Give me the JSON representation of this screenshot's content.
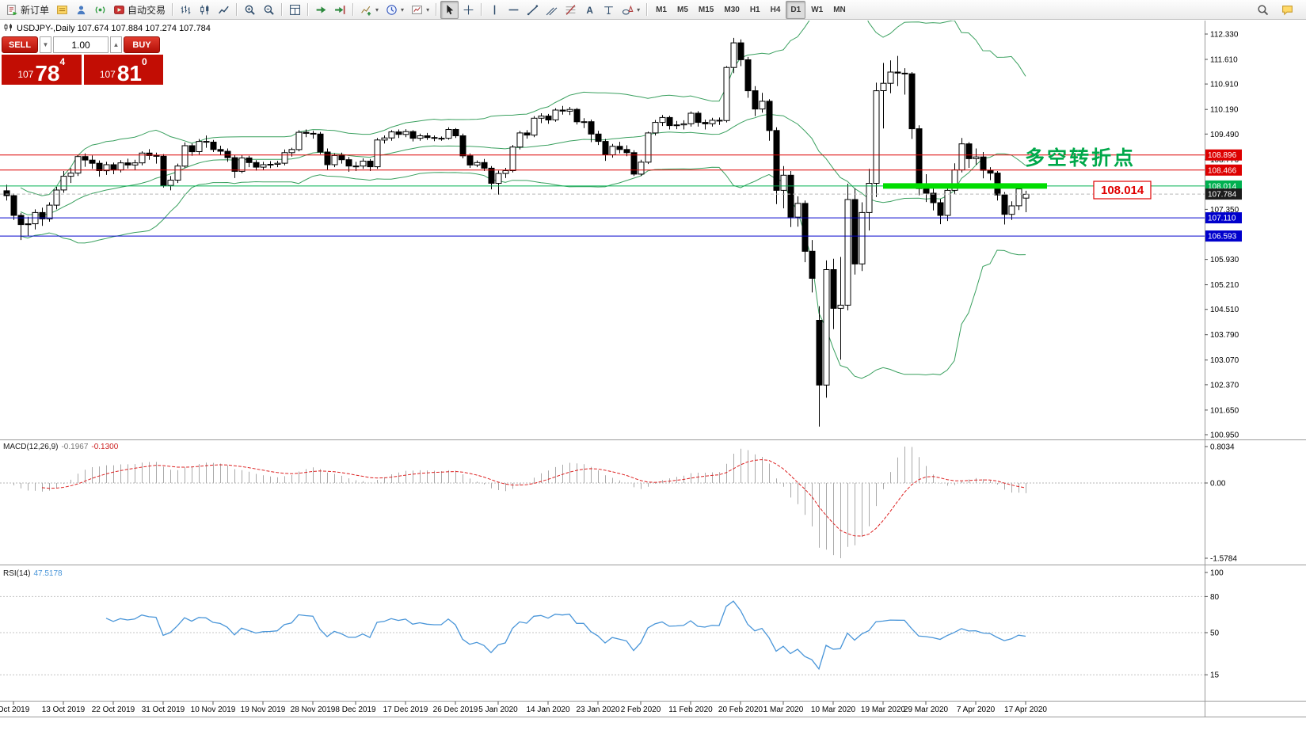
{
  "chart_header": {
    "text": "USDJPY-,Daily 107.674 107.884 107.274 107.784"
  },
  "trade_panel": {
    "sell_label": "SELL",
    "buy_label": "BUY",
    "volume": "1.00",
    "sell_price": {
      "prefix": "107",
      "big": "78",
      "sup": "4"
    },
    "buy_price": {
      "prefix": "107",
      "big": "81",
      "sup": "0"
    }
  },
  "annotations": {
    "turning_point": "多空转折点",
    "level_label": "108.014"
  },
  "toolbar": {
    "items": [
      {
        "type": "button",
        "name": "new-order-button",
        "icon": "new-order-icon",
        "label": "新订单"
      },
      {
        "type": "button",
        "name": "market-watch-button",
        "icon": "market-watch-icon"
      },
      {
        "type": "button",
        "name": "navigator-button",
        "icon": "navigator-icon"
      },
      {
        "type": "button",
        "name": "mql5-community-button",
        "icon": "mql5-community-icon"
      },
      {
        "type": "button",
        "name": "autotrading-button",
        "icon": "autotrading-icon",
        "label": "自动交易"
      },
      {
        "type": "separator"
      },
      {
        "type": "button",
        "name": "bar-chart-button",
        "icon": "bar-chart-icon"
      },
      {
        "type": "button",
        "name": "candlestick-chart-button",
        "icon": "candlestick-icon"
      },
      {
        "type": "button",
        "name": "line-chart-button",
        "icon": "line-chart-icon"
      },
      {
        "type": "separator"
      },
      {
        "type": "button",
        "name": "zoom-in-button",
        "icon": "zoom-in-icon"
      },
      {
        "type": "button",
        "name": "zoom-out-button",
        "icon": "zoom-out-icon"
      },
      {
        "type": "separator"
      },
      {
        "type": "button",
        "name": "tile-windows-button",
        "icon": "tile-windows-icon"
      },
      {
        "type": "separator"
      },
      {
        "type": "button",
        "name": "auto-scroll-button",
        "icon": "auto-scroll-icon"
      },
      {
        "type": "button",
        "name": "chart-shift-button",
        "icon": "chart-shift-icon"
      },
      {
        "type": "separator"
      },
      {
        "type": "button",
        "name": "indicators-button",
        "icon": "indicators-icon",
        "caret": true
      },
      {
        "type": "button",
        "name": "periods-button",
        "icon": "period-icon",
        "caret": true
      },
      {
        "type": "button",
        "name": "templates-button",
        "icon": "template-icon",
        "caret": true
      },
      {
        "type": "separator"
      },
      {
        "type": "button",
        "name": "cursor-button",
        "icon": "cursor-icon",
        "active": true
      },
      {
        "type": "button",
        "name": "crosshair-button",
        "icon": "crosshair-icon"
      },
      {
        "type": "separator"
      },
      {
        "type": "button",
        "name": "vertical-line-button",
        "icon": "vertical-line-icon"
      },
      {
        "type": "button",
        "name": "horizontal-line-button",
        "icon": "horizontal-line-icon"
      },
      {
        "type": "button",
        "name": "trendline-button",
        "icon": "trendline-icon"
      },
      {
        "type": "button",
        "name": "channel-button",
        "icon": "channel-icon"
      },
      {
        "type": "button",
        "name": "fibonacci-button",
        "icon": "fibonacci-icon"
      },
      {
        "type": "button",
        "name": "text-button",
        "icon": "text-icon"
      },
      {
        "type": "button",
        "name": "label-button",
        "icon": "label-icon"
      },
      {
        "type": "button",
        "name": "shapes-button",
        "icon": "shapes-icon",
        "caret": true
      },
      {
        "type": "separator"
      }
    ],
    "timeframes": [
      {
        "label": "M1"
      },
      {
        "label": "M5"
      },
      {
        "label": "M15"
      },
      {
        "label": "M30"
      },
      {
        "label": "H1"
      },
      {
        "label": "H4"
      },
      {
        "label": "D1",
        "active": true
      },
      {
        "label": "W1"
      },
      {
        "label": "MN"
      }
    ],
    "right_items": [
      {
        "name": "search-button",
        "icon": "search-icon"
      },
      {
        "name": "chat-button",
        "icon": "chat-icon"
      }
    ]
  },
  "chart_data": {
    "type": "candlestick",
    "symbol": "USDJPY-",
    "timeframe": "Daily",
    "ohlc_last": {
      "o": 107.674,
      "h": 107.884,
      "l": 107.274,
      "c": 107.784
    },
    "price_anchor": {
      "top_price": 112.33,
      "bottom_price": 100.95
    },
    "y_axis_ticks": [
      "112.330",
      "111.610",
      "110.910",
      "110.190",
      "109.490",
      "108.770",
      "107.350",
      "105.930",
      "105.210",
      "104.510",
      "103.790",
      "103.070",
      "102.370",
      "101.650",
      "100.950"
    ],
    "hlines": [
      {
        "price": 108.896,
        "color": "#dd0000",
        "label": "108.896"
      },
      {
        "price": 108.466,
        "color": "#dd0000",
        "label": "108.466"
      },
      {
        "price": 108.014,
        "color": "#00b050",
        "label": "108.014"
      },
      {
        "price": 107.11,
        "color": "#0000cc",
        "label": "107.110"
      },
      {
        "price": 106.593,
        "color": "#0000cc",
        "label": "106.593"
      }
    ],
    "current_price": {
      "value": 107.784,
      "label": "107.784",
      "tag_color": "#1c1c1c"
    },
    "green_segment": {
      "price": 108.014,
      "x1_index": 123,
      "x2_index": 146,
      "color": "#00dd00",
      "thickness": 7
    },
    "bollinger": {
      "period": 20,
      "deviation": 2,
      "color": "#3aa05f"
    },
    "macd": {
      "label": "MACD(12,26,9)",
      "value_main": "-0.1967",
      "value_signal": "-0.1300",
      "axis_labels": [
        "0.8034",
        "0.00",
        "-1.5784"
      ],
      "histogram_color": "#a9a9a9",
      "signal_color": "#dd2222"
    },
    "rsi": {
      "label": "RSI(14)",
      "value": "47.5178",
      "axis_labels": [
        "100",
        "80",
        "50",
        "15"
      ],
      "levels": [
        80,
        50,
        15
      ],
      "line_color": "#4a96d9"
    },
    "x_labels": [
      {
        "i": 1,
        "t": "Oct 2019"
      },
      {
        "i": 8,
        "t": "13 Oct 2019"
      },
      {
        "i": 15,
        "t": "22 Oct 2019"
      },
      {
        "i": 22,
        "t": "31 Oct 2019"
      },
      {
        "i": 29,
        "t": "10 Nov 2019"
      },
      {
        "i": 36,
        "t": "19 Nov 2019"
      },
      {
        "i": 43,
        "t": "28 Nov 2019"
      },
      {
        "i": 49,
        "t": "8 Dec 2019"
      },
      {
        "i": 56,
        "t": "17 Dec 2019"
      },
      {
        "i": 63,
        "t": "26 Dec 2019"
      },
      {
        "i": 69,
        "t": "5 Jan 2020"
      },
      {
        "i": 76,
        "t": "14 Jan 2020"
      },
      {
        "i": 83,
        "t": "23 Jan 2020"
      },
      {
        "i": 89,
        "t": "2 Feb 2020"
      },
      {
        "i": 96,
        "t": "11 Feb 2020"
      },
      {
        "i": 103,
        "t": "20 Feb 2020"
      },
      {
        "i": 109,
        "t": "1 Mar 2020"
      },
      {
        "i": 116,
        "t": "10 Mar 2020"
      },
      {
        "i": 123,
        "t": "19 Mar 2020"
      },
      {
        "i": 129,
        "t": "29 Mar 2020"
      },
      {
        "i": 136,
        "t": "7 Apr 2020"
      },
      {
        "i": 143,
        "t": "17 Apr 2020"
      }
    ],
    "candles": [
      [
        107.88,
        108.05,
        107.6,
        107.74
      ],
      [
        107.74,
        107.8,
        107.05,
        107.18
      ],
      [
        107.18,
        107.25,
        106.48,
        106.92
      ],
      [
        106.92,
        107.14,
        106.6,
        106.94
      ],
      [
        106.94,
        107.35,
        106.78,
        107.26
      ],
      [
        107.26,
        107.4,
        106.88,
        107.08
      ],
      [
        107.08,
        107.55,
        107.0,
        107.47
      ],
      [
        107.47,
        107.99,
        107.35,
        107.9
      ],
      [
        107.9,
        108.44,
        107.82,
        108.29
      ],
      [
        108.29,
        108.52,
        108.1,
        108.38
      ],
      [
        108.38,
        108.9,
        108.3,
        108.85
      ],
      [
        108.85,
        108.94,
        108.56,
        108.75
      ],
      [
        108.75,
        108.88,
        108.5,
        108.66
      ],
      [
        108.66,
        108.74,
        108.28,
        108.45
      ],
      [
        108.45,
        108.7,
        108.33,
        108.62
      ],
      [
        108.62,
        108.68,
        108.35,
        108.47
      ],
      [
        108.47,
        108.75,
        108.4,
        108.67
      ],
      [
        108.67,
        108.79,
        108.51,
        108.61
      ],
      [
        108.61,
        108.76,
        108.47,
        108.67
      ],
      [
        108.67,
        109.0,
        108.6,
        108.95
      ],
      [
        108.95,
        109.06,
        108.76,
        108.88
      ],
      [
        108.88,
        108.96,
        108.65,
        108.86
      ],
      [
        108.86,
        108.92,
        107.97,
        108.03
      ],
      [
        108.03,
        108.3,
        107.89,
        108.18
      ],
      [
        108.18,
        108.65,
        108.1,
        108.58
      ],
      [
        108.58,
        109.25,
        108.52,
        109.16
      ],
      [
        109.16,
        109.22,
        108.87,
        108.99
      ],
      [
        108.99,
        109.35,
        108.91,
        109.28
      ],
      [
        109.28,
        109.45,
        109.1,
        109.26
      ],
      [
        109.26,
        109.32,
        108.98,
        109.05
      ],
      [
        109.05,
        109.16,
        108.9,
        109.0
      ],
      [
        109.0,
        109.08,
        108.7,
        108.82
      ],
      [
        108.82,
        108.9,
        108.24,
        108.43
      ],
      [
        108.43,
        108.89,
        108.38,
        108.81
      ],
      [
        108.81,
        108.87,
        108.55,
        108.68
      ],
      [
        108.68,
        108.75,
        108.45,
        108.55
      ],
      [
        108.55,
        108.7,
        108.47,
        108.62
      ],
      [
        108.62,
        108.72,
        108.52,
        108.63
      ],
      [
        108.63,
        108.73,
        108.55,
        108.66
      ],
      [
        108.66,
        109.05,
        108.6,
        108.96
      ],
      [
        108.96,
        109.1,
        108.85,
        109.05
      ],
      [
        109.05,
        109.6,
        109.0,
        109.54
      ],
      [
        109.54,
        109.62,
        109.4,
        109.51
      ],
      [
        109.51,
        109.58,
        109.36,
        109.49
      ],
      [
        109.49,
        109.55,
        108.92,
        108.98
      ],
      [
        108.98,
        109.08,
        108.48,
        108.62
      ],
      [
        108.62,
        108.94,
        108.55,
        108.88
      ],
      [
        108.88,
        108.96,
        108.65,
        108.76
      ],
      [
        108.76,
        108.84,
        108.42,
        108.58
      ],
      [
        108.58,
        108.7,
        108.44,
        108.58
      ],
      [
        108.58,
        108.8,
        108.5,
        108.72
      ],
      [
        108.72,
        108.78,
        108.44,
        108.56
      ],
      [
        108.56,
        109.38,
        108.5,
        109.32
      ],
      [
        109.32,
        109.45,
        109.22,
        109.38
      ],
      [
        109.38,
        109.6,
        109.3,
        109.55
      ],
      [
        109.55,
        109.62,
        109.38,
        109.48
      ],
      [
        109.48,
        109.63,
        109.4,
        109.56
      ],
      [
        109.56,
        109.6,
        109.28,
        109.37
      ],
      [
        109.37,
        109.5,
        109.3,
        109.44
      ],
      [
        109.44,
        109.52,
        109.32,
        109.39
      ],
      [
        109.39,
        109.45,
        109.29,
        109.37
      ],
      [
        109.37,
        109.42,
        109.3,
        109.37
      ],
      [
        109.37,
        109.68,
        109.33,
        109.62
      ],
      [
        109.62,
        109.66,
        109.38,
        109.44
      ],
      [
        109.44,
        109.5,
        108.8,
        108.87
      ],
      [
        108.87,
        108.94,
        108.53,
        108.61
      ],
      [
        108.61,
        108.74,
        108.55,
        108.68
      ],
      [
        108.68,
        108.78,
        108.44,
        108.52
      ],
      [
        108.52,
        108.58,
        107.92,
        108.09
      ],
      [
        108.09,
        108.45,
        107.77,
        108.37
      ],
      [
        108.37,
        108.53,
        108.24,
        108.45
      ],
      [
        108.45,
        109.18,
        108.4,
        109.12
      ],
      [
        109.12,
        109.58,
        109.05,
        109.52
      ],
      [
        109.52,
        109.6,
        109.36,
        109.46
      ],
      [
        109.46,
        110.0,
        109.4,
        109.94
      ],
      [
        109.94,
        110.08,
        109.8,
        110.0
      ],
      [
        110.0,
        110.06,
        109.78,
        109.89
      ],
      [
        109.89,
        110.22,
        109.84,
        110.17
      ],
      [
        110.17,
        110.29,
        110.04,
        110.14
      ],
      [
        110.14,
        110.26,
        110.03,
        110.19
      ],
      [
        110.19,
        110.23,
        109.76,
        109.84
      ],
      [
        109.84,
        109.94,
        109.66,
        109.84
      ],
      [
        109.84,
        109.9,
        109.26,
        109.49
      ],
      [
        109.49,
        109.58,
        109.18,
        109.28
      ],
      [
        109.28,
        109.35,
        108.73,
        108.9
      ],
      [
        108.9,
        109.21,
        108.82,
        109.14
      ],
      [
        109.14,
        109.27,
        108.94,
        109.05
      ],
      [
        109.05,
        109.17,
        108.86,
        108.96
      ],
      [
        108.96,
        109.03,
        108.3,
        108.35
      ],
      [
        108.35,
        108.76,
        108.3,
        108.69
      ],
      [
        108.69,
        109.56,
        108.64,
        109.52
      ],
      [
        109.52,
        109.89,
        109.45,
        109.82
      ],
      [
        109.82,
        110.03,
        109.72,
        109.96
      ],
      [
        109.96,
        110.01,
        109.62,
        109.73
      ],
      [
        109.73,
        109.86,
        109.63,
        109.75
      ],
      [
        109.75,
        109.88,
        109.62,
        109.78
      ],
      [
        109.78,
        110.13,
        109.7,
        110.08
      ],
      [
        110.08,
        110.14,
        109.7,
        109.82
      ],
      [
        109.82,
        109.9,
        109.62,
        109.78
      ],
      [
        109.78,
        109.95,
        109.7,
        109.88
      ],
      [
        109.88,
        109.96,
        109.75,
        109.87
      ],
      [
        109.87,
        111.42,
        109.82,
        111.38
      ],
      [
        111.38,
        112.22,
        111.22,
        112.08
      ],
      [
        112.08,
        112.18,
        111.42,
        111.6
      ],
      [
        111.6,
        111.68,
        110.52,
        110.72
      ],
      [
        110.72,
        110.85,
        110.0,
        110.2
      ],
      [
        110.2,
        110.66,
        110.1,
        110.42
      ],
      [
        110.42,
        110.48,
        109.3,
        109.59
      ],
      [
        109.59,
        109.68,
        107.5,
        107.89
      ],
      [
        107.89,
        108.58,
        107.38,
        108.32
      ],
      [
        108.32,
        108.44,
        106.85,
        107.13
      ],
      [
        107.13,
        107.72,
        106.86,
        107.52
      ],
      [
        107.52,
        107.6,
        105.85,
        106.16
      ],
      [
        106.16,
        106.48,
        104.99,
        105.39
      ],
      [
        104.2,
        104.6,
        101.18,
        102.36
      ],
      [
        102.36,
        105.9,
        102.0,
        105.64
      ],
      [
        105.64,
        105.95,
        103.95,
        104.54
      ],
      [
        104.54,
        106.0,
        103.08,
        104.63
      ],
      [
        104.63,
        108.08,
        104.48,
        107.63
      ],
      [
        107.63,
        107.95,
        105.5,
        105.8
      ],
      [
        105.8,
        107.55,
        105.6,
        107.26
      ],
      [
        107.26,
        108.5,
        106.75,
        108.09
      ],
      [
        108.09,
        110.95,
        107.7,
        110.72
      ],
      [
        110.72,
        111.51,
        109.65,
        110.93
      ],
      [
        110.93,
        111.58,
        110.65,
        111.25
      ],
      [
        111.25,
        111.71,
        110.85,
        111.22
      ],
      [
        111.22,
        111.36,
        110.61,
        111.2
      ],
      [
        111.2,
        111.25,
        109.35,
        109.64
      ],
      [
        109.64,
        109.74,
        107.75,
        107.94
      ],
      [
        107.94,
        108.35,
        107.56,
        107.81
      ],
      [
        107.81,
        108.06,
        107.32,
        107.54
      ],
      [
        107.54,
        107.64,
        106.93,
        107.18
      ],
      [
        107.18,
        108.05,
        107.02,
        107.89
      ],
      [
        107.89,
        108.66,
        107.78,
        108.47
      ],
      [
        108.47,
        109.38,
        108.4,
        109.21
      ],
      [
        109.21,
        109.26,
        108.53,
        108.79
      ],
      [
        108.79,
        109.08,
        108.62,
        108.84
      ],
      [
        108.84,
        108.98,
        108.23,
        108.46
      ],
      [
        108.46,
        108.55,
        108.18,
        108.38
      ],
      [
        108.38,
        108.44,
        107.6,
        107.76
      ],
      [
        107.76,
        107.84,
        106.92,
        107.21
      ],
      [
        107.21,
        107.58,
        107.05,
        107.45
      ],
      [
        107.45,
        108.05,
        107.33,
        107.93
      ],
      [
        107.67,
        107.88,
        107.27,
        107.78
      ]
    ]
  }
}
